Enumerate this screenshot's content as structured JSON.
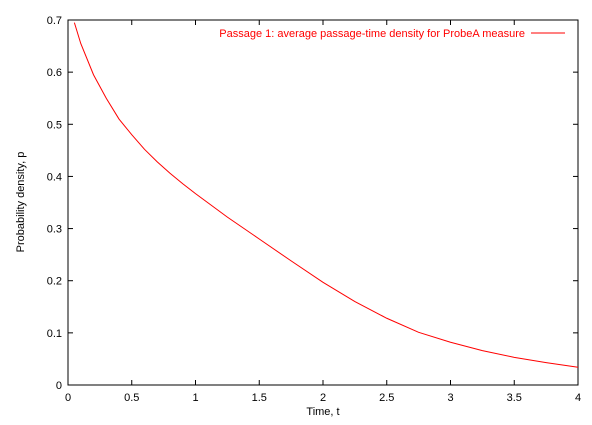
{
  "chart_data": {
    "type": "line",
    "title": "",
    "xlabel": "Time, t",
    "ylabel": "Probability density, p",
    "xlim": [
      0,
      4
    ],
    "ylim": [
      0,
      0.7
    ],
    "xticks": [
      0,
      0.5,
      1,
      1.5,
      2,
      2.5,
      3,
      3.5,
      4
    ],
    "yticks": [
      0,
      0.1,
      0.2,
      0.3,
      0.4,
      0.5,
      0.6,
      0.7
    ],
    "xtick_labels": [
      "0",
      "0.5",
      "1",
      "1.5",
      "2",
      "2.5",
      "3",
      "3.5",
      "4"
    ],
    "ytick_labels": [
      "0",
      "0.1",
      "0.2",
      "0.3",
      "0.4",
      "0.5",
      "0.6",
      "0.7"
    ],
    "grid": false,
    "legend": "top-right",
    "series": [
      {
        "name": "Passage 1: average passage-time density for ProbeA measure",
        "color": "#ff0000",
        "x": [
          0.05,
          0.1,
          0.2,
          0.3,
          0.4,
          0.5,
          0.6,
          0.7,
          0.8,
          0.9,
          1.0,
          1.25,
          1.5,
          1.75,
          2.0,
          2.25,
          2.5,
          2.75,
          3.0,
          3.25,
          3.5,
          3.75,
          4.0
        ],
        "y": [
          0.695,
          0.655,
          0.595,
          0.55,
          0.51,
          0.48,
          0.452,
          0.428,
          0.406,
          0.386,
          0.367,
          0.322,
          0.28,
          0.238,
          0.197,
          0.16,
          0.128,
          0.101,
          0.082,
          0.066,
          0.053,
          0.043,
          0.034
        ]
      }
    ]
  }
}
